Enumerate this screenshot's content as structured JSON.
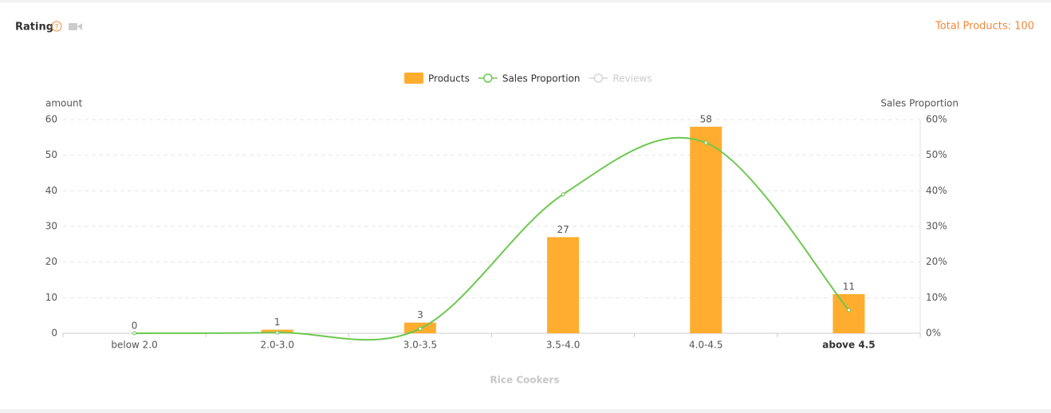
{
  "header": {
    "title": "Rating",
    "total": "Total Products: 100"
  },
  "chart_data": {
    "type": "bar-line",
    "categories": [
      "below 2.0",
      "2.0-3.0",
      "3.0-3.5",
      "3.5-4.0",
      "4.0-4.5",
      "above 4.5"
    ],
    "series": [
      {
        "name": "Products",
        "color": "#ffad2e",
        "type": "bar",
        "values": [
          0,
          1,
          3,
          27,
          58,
          11
        ]
      },
      {
        "name": "Sales Proportion",
        "color": "#6cc84f",
        "type": "line",
        "axis": "y2",
        "values": [
          0,
          0.2,
          1.3,
          39,
          53.5,
          6.5
        ]
      },
      {
        "name": "Reviews",
        "color": "#d6d6d6",
        "type": "line",
        "axis": "y2",
        "visible": false,
        "values": [
          null,
          null,
          null,
          null,
          null,
          null
        ]
      }
    ],
    "ylabel": "amount",
    "y2label": "Sales Proportion",
    "xlabel": "Rice Cookers",
    "ylim": [
      0,
      60
    ],
    "yticks": [
      0,
      10,
      20,
      30,
      40,
      50,
      60
    ],
    "y2lim": [
      0,
      60
    ],
    "y2ticks": [
      {
        "value": 0,
        "label": "0%"
      },
      {
        "value": 10,
        "label": "10%"
      },
      {
        "value": 20,
        "label": "20%"
      },
      {
        "value": 30,
        "label": "30%"
      },
      {
        "value": 40,
        "label": "40%"
      },
      {
        "value": 50,
        "label": "50%"
      },
      {
        "value": 60,
        "label": "60%"
      }
    ],
    "grid": true,
    "legend": "top"
  }
}
